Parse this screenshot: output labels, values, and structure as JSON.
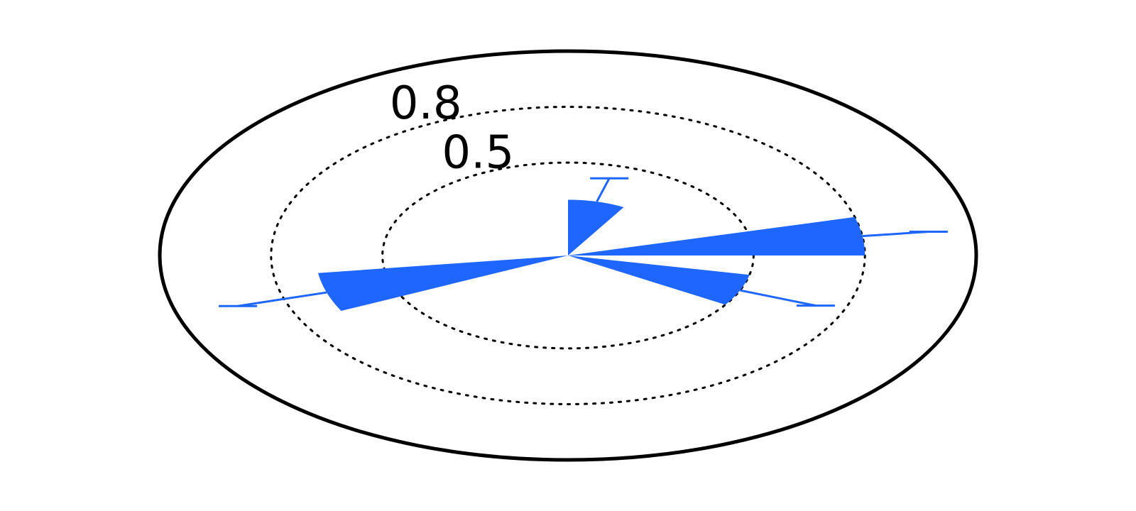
{
  "chart_data": {
    "type": "polar-bar",
    "title": "",
    "radial_ticks": [
      {
        "value": 0.5,
        "label": "0.5"
      },
      {
        "value": 0.8,
        "label": "0.8"
      }
    ],
    "r_max": 1.1,
    "grid": true,
    "grid_style": "dotted",
    "series": [
      {
        "color": "#1f66ff",
        "wedges": [
          {
            "start_deg": 0,
            "end_deg": 15,
            "value": 0.8,
            "error": 0.98
          },
          {
            "start_deg": 60,
            "end_deg": 90,
            "value": 0.3,
            "error": 0.43
          },
          {
            "start_deg": 188,
            "end_deg": 206,
            "value": 0.68,
            "error": 0.93
          },
          {
            "start_deg": 328,
            "end_deg": 348,
            "value": 0.5,
            "error": 0.72
          }
        ]
      }
    ]
  }
}
